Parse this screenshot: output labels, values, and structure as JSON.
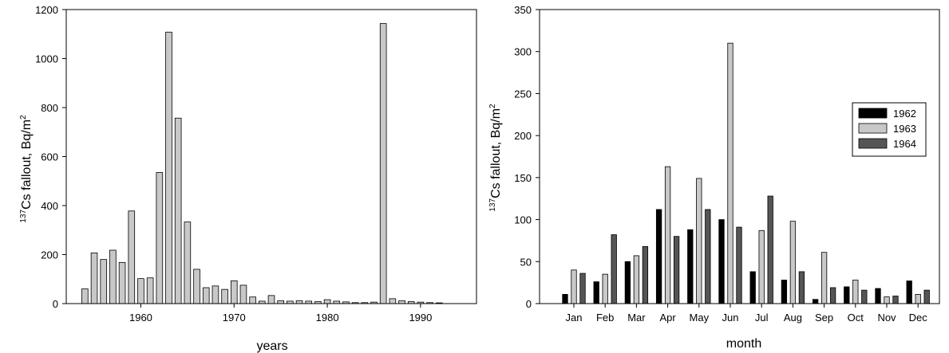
{
  "chart_data": [
    {
      "type": "bar",
      "xlabel": "years",
      "ylabel_sup": "137",
      "ylabel_main": "Cs fallout, Bq/m",
      "ylabel_unit_sup": "2",
      "xlim": [
        1952,
        1996
      ],
      "ylim": [
        0,
        1200
      ],
      "xticks": [
        1960,
        1970,
        1980,
        1990
      ],
      "yticks": [
        0,
        200,
        400,
        600,
        800,
        1000,
        1200
      ],
      "bar_color": "#c8c8c8",
      "x": [
        1954,
        1955,
        1956,
        1957,
        1958,
        1959,
        1960,
        1961,
        1962,
        1963,
        1964,
        1965,
        1966,
        1967,
        1968,
        1969,
        1970,
        1971,
        1972,
        1973,
        1974,
        1975,
        1976,
        1977,
        1978,
        1979,
        1980,
        1981,
        1982,
        1983,
        1984,
        1985,
        1986,
        1987,
        1988,
        1989,
        1990,
        1991,
        1992
      ],
      "values": [
        60,
        207,
        180,
        218,
        168,
        378,
        102,
        105,
        535,
        1108,
        757,
        333,
        140,
        65,
        72,
        58,
        93,
        75,
        27,
        10,
        33,
        12,
        10,
        12,
        10,
        8,
        16,
        10,
        7,
        4,
        4,
        6,
        1143,
        20,
        12,
        8,
        6,
        4,
        3
      ]
    },
    {
      "type": "bar",
      "xlabel": "month",
      "ylabel_sup": "137",
      "ylabel_main": "Cs fallout, Bq/m",
      "ylabel_unit_sup": "2",
      "ylim": [
        0,
        350
      ],
      "yticks": [
        0,
        50,
        100,
        150,
        200,
        250,
        300,
        350
      ],
      "categories": [
        "Jan",
        "Feb",
        "Mar",
        "Apr",
        "May",
        "Jun",
        "Jul",
        "Aug",
        "Sep",
        "Oct",
        "Nov",
        "Dec"
      ],
      "legend_position": "right",
      "series": [
        {
          "name": "1962",
          "color": "#000000",
          "values": [
            11,
            26,
            50,
            112,
            88,
            100,
            38,
            28,
            5,
            20,
            18,
            27
          ]
        },
        {
          "name": "1963",
          "color": "#c8c8c8",
          "values": [
            40,
            35,
            57,
            163,
            149,
            310,
            87,
            98,
            61,
            28,
            8,
            11
          ]
        },
        {
          "name": "1964",
          "color": "#555555",
          "values": [
            36,
            82,
            68,
            80,
            112,
            91,
            128,
            38,
            19,
            16,
            9,
            16
          ]
        }
      ]
    }
  ]
}
